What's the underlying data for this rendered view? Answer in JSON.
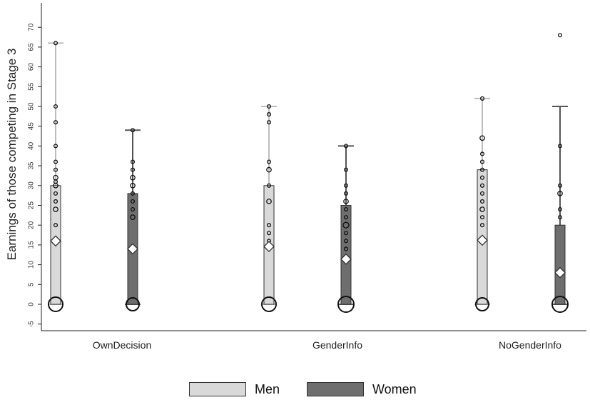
{
  "chart_data": {
    "type": "box",
    "title": "",
    "xlabel": "",
    "ylabel": "Earnings of those competing in Stage 3",
    "ylim": [
      -7,
      71
    ],
    "yticks": [
      -5,
      0,
      5,
      10,
      15,
      20,
      25,
      30,
      35,
      40,
      45,
      50,
      55,
      60,
      65,
      70
    ],
    "categories": [
      "OwnDecision",
      "GenderInfo",
      "NoGenderInfo"
    ],
    "grid": false,
    "legend_position": "bottom",
    "series": [
      {
        "name": "Men",
        "color": "#d9d9d9",
        "boxes": [
          {
            "category": "OwnDecision",
            "q1": 0,
            "q3": 30,
            "whisker_low": 0,
            "whisker_high": 66,
            "mean": 16,
            "points": [
              [
                0,
                3
              ],
              [
                20,
                1
              ],
              [
                24,
                2
              ],
              [
                26,
                1
              ],
              [
                28,
                1
              ],
              [
                30,
                2
              ],
              [
                31,
                1
              ],
              [
                32,
                2
              ],
              [
                34,
                1
              ],
              [
                36,
                1
              ],
              [
                40,
                1
              ],
              [
                46,
                1
              ],
              [
                50,
                1
              ],
              [
                66,
                1
              ]
            ]
          },
          {
            "category": "GenderInfo",
            "q1": 0,
            "q3": 30,
            "whisker_low": 0,
            "whisker_high": 50,
            "mean": 14.6,
            "points": [
              [
                0,
                3
              ],
              [
                16,
                1
              ],
              [
                18,
                1
              ],
              [
                20,
                1
              ],
              [
                26,
                2
              ],
              [
                30,
                1
              ],
              [
                34,
                2
              ],
              [
                36,
                1
              ],
              [
                46,
                1
              ],
              [
                48,
                1
              ],
              [
                50,
                1
              ]
            ]
          },
          {
            "category": "NoGenderInfo",
            "q1": 0,
            "q3": 34,
            "whisker_low": 0,
            "whisker_high": 52,
            "mean": 16.2,
            "points": [
              [
                0,
                2
              ],
              [
                20,
                1
              ],
              [
                22,
                1
              ],
              [
                24,
                2
              ],
              [
                26,
                1
              ],
              [
                28,
                1
              ],
              [
                30,
                1
              ],
              [
                32,
                1
              ],
              [
                34,
                1
              ],
              [
                36,
                1
              ],
              [
                38,
                1
              ],
              [
                42,
                2
              ],
              [
                52,
                1
              ]
            ]
          }
        ]
      },
      {
        "name": "Women",
        "color": "#6e6e6e",
        "boxes": [
          {
            "category": "OwnDecision",
            "q1": 0,
            "q3": 28,
            "whisker_low": 0,
            "whisker_high": 44,
            "mean": 14,
            "points": [
              [
                0,
                2
              ],
              [
                22,
                2
              ],
              [
                24,
                1
              ],
              [
                26,
                1
              ],
              [
                28,
                1
              ],
              [
                30,
                2
              ],
              [
                32,
                2
              ],
              [
                34,
                1
              ],
              [
                36,
                1
              ],
              [
                44,
                1
              ]
            ]
          },
          {
            "category": "GenderInfo",
            "q1": 0,
            "q3": 25,
            "whisker_low": 0,
            "whisker_high": 40,
            "mean": 11.4,
            "points": [
              [
                0,
                4
              ],
              [
                14,
                1
              ],
              [
                16,
                1
              ],
              [
                18,
                1
              ],
              [
                20,
                3
              ],
              [
                22,
                1
              ],
              [
                24,
                1
              ],
              [
                26,
                2
              ],
              [
                28,
                1
              ],
              [
                30,
                1
              ],
              [
                34,
                1
              ],
              [
                40,
                1
              ]
            ]
          },
          {
            "category": "NoGenderInfo",
            "q1": 0,
            "q3": 20,
            "whisker_low": 0,
            "whisker_high": 50,
            "mean": 8,
            "points": [
              [
                0,
                4
              ],
              [
                22,
                1
              ],
              [
                24,
                1
              ],
              [
                28,
                2
              ],
              [
                30,
                1
              ],
              [
                40,
                1
              ],
              [
                68,
                1
              ]
            ]
          }
        ]
      }
    ]
  }
}
